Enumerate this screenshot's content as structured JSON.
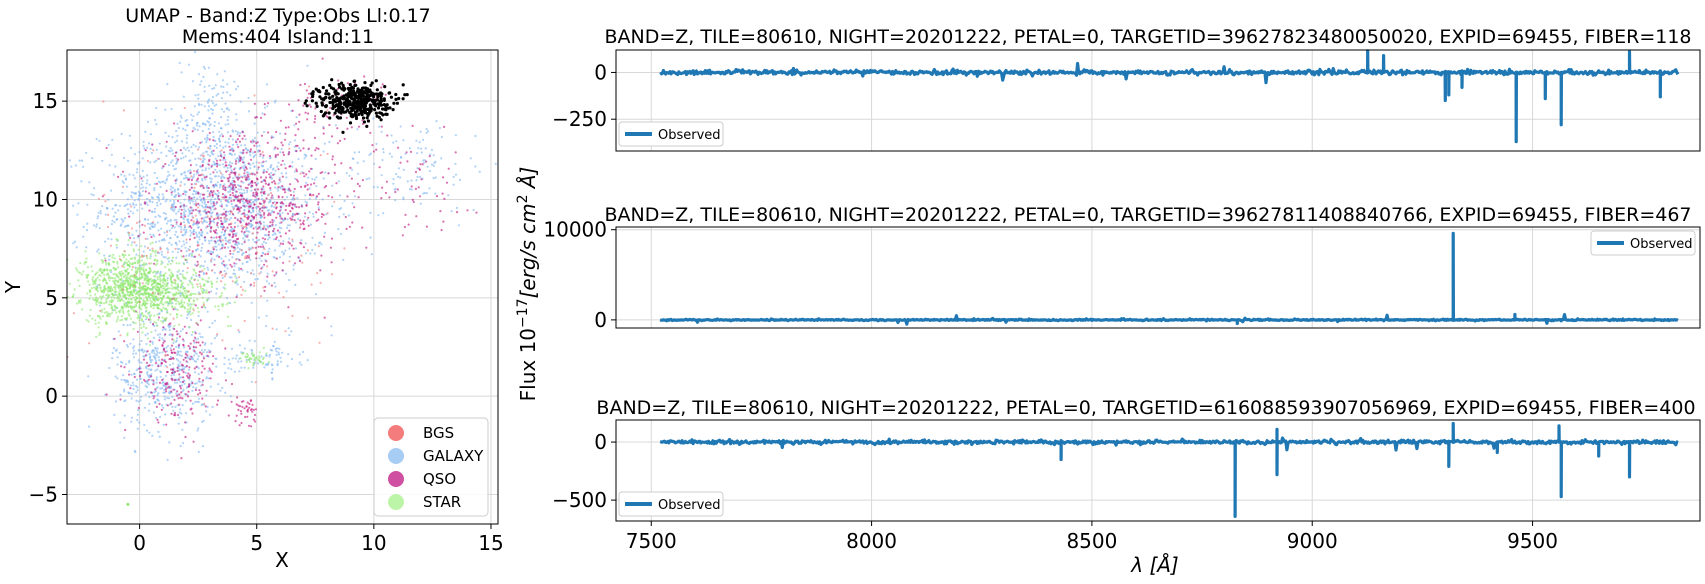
{
  "chart_data": [
    {
      "type": "scatter",
      "title": "UMAP  -  Band:Z Type:Obs Ll:0.17",
      "subtitle": "Mems:404 Island:11",
      "xlabel": "X",
      "ylabel": "Y",
      "xlim": [
        -3.1,
        15.3
      ],
      "ylim": [
        -6.5,
        17.6
      ],
      "xticks": [
        0,
        5,
        10,
        15
      ],
      "yticks": [
        -5,
        0,
        5,
        10,
        15
      ],
      "xtick_labels": [
        "0",
        "5",
        "10",
        "15"
      ],
      "ytick_labels": [
        "−5",
        "0",
        "5",
        "10",
        "15"
      ],
      "grid": true,
      "legend_position": "bottom-right",
      "series": [
        {
          "name": "GALAXY",
          "color": "#7fb6f2",
          "clusters": [
            {
              "cx": 3.2,
              "cy": 9.6,
              "sx": 2.4,
              "sy": 2.1,
              "n": 1500
            },
            {
              "cx": 1.1,
              "cy": 1.4,
              "sx": 1.1,
              "sy": 1.6,
              "n": 500
            },
            {
              "cx": 3.0,
              "cy": 14.0,
              "sx": 1.0,
              "sy": 1.6,
              "n": 160
            },
            {
              "cx": 11.8,
              "cy": 11.8,
              "sx": 1.6,
              "sy": 1.2,
              "n": 110
            },
            {
              "cx": 5.3,
              "cy": 2.0,
              "sx": 0.8,
              "sy": 0.5,
              "n": 80
            }
          ]
        },
        {
          "name": "QSO",
          "color": "#c0117e",
          "clusters": [
            {
              "cx": 4.6,
              "cy": 9.8,
              "sx": 2.0,
              "sy": 1.7,
              "n": 700
            },
            {
              "cx": 1.6,
              "cy": 1.3,
              "sx": 0.9,
              "sy": 1.3,
              "n": 220
            },
            {
              "cx": 4.5,
              "cy": -0.7,
              "sx": 0.25,
              "sy": 0.35,
              "n": 40
            },
            {
              "cx": 8.2,
              "cy": 14.5,
              "sx": 1.3,
              "sy": 1.0,
              "n": 90
            },
            {
              "cx": 11.5,
              "cy": 11.0,
              "sx": 1.4,
              "sy": 1.4,
              "n": 50
            }
          ]
        },
        {
          "name": "STAR",
          "color": "#8ee86e",
          "clusters": [
            {
              "cx": -0.3,
              "cy": 5.5,
              "sx": 1.1,
              "sy": 0.9,
              "n": 900
            },
            {
              "cx": 1.3,
              "cy": 5.2,
              "sx": 1.3,
              "sy": 0.6,
              "n": 300
            },
            {
              "cx": 4.9,
              "cy": 1.9,
              "sx": 0.3,
              "sy": 0.2,
              "n": 40
            }
          ]
        },
        {
          "name": "BGS",
          "color": "#f47c7c",
          "clusters": [
            {
              "cx": 3.0,
              "cy": 8.0,
              "sx": 2.5,
              "sy": 3.0,
              "n": 200
            }
          ]
        },
        {
          "name": "Island",
          "color": "#000000",
          "clusters": [
            {
              "cx": 9.2,
              "cy": 15.0,
              "sx": 0.75,
              "sy": 0.45,
              "n": 404
            }
          ]
        }
      ],
      "legend": [
        {
          "label": "BGS",
          "color": "#f47c7c"
        },
        {
          "label": "GALAXY",
          "color": "#a8cdf5"
        },
        {
          "label": "QSO",
          "color": "#cf4fa0"
        },
        {
          "label": "STAR",
          "color": "#bdf5a8"
        }
      ]
    },
    {
      "type": "line",
      "title": "BAND=Z, TILE=80610, NIGHT=20201222, PETAL=0, TARGETID=39627823480050020, EXPID=69455, FIBER=118",
      "ylim": [
        -420,
        120
      ],
      "yticks": [
        0,
        -250
      ],
      "ytick_labels": [
        "0",
        "−250"
      ],
      "xlim": [
        7420,
        9880
      ],
      "series": [
        {
          "name": "Observed",
          "color": "#1f77b4"
        }
      ],
      "legend_position": "bottom-left",
      "spikes": [
        {
          "x": 9126,
          "y": 115
        },
        {
          "x": 9162,
          "y": 90
        },
        {
          "x": 9302,
          "y": -150
        },
        {
          "x": 9310,
          "y": -120
        },
        {
          "x": 9340,
          "y": -80
        },
        {
          "x": 9463,
          "y": -370
        },
        {
          "x": 9529,
          "y": -140
        },
        {
          "x": 9565,
          "y": -280
        },
        {
          "x": 9720,
          "y": 110
        },
        {
          "x": 9790,
          "y": -130
        }
      ]
    },
    {
      "type": "line",
      "title": "BAND=Z, TILE=80610, NIGHT=20201222, PETAL=0, TARGETID=39627811408840766, EXPID=69455, FIBER=467",
      "ylim": [
        -900,
        10300
      ],
      "yticks": [
        0,
        10000
      ],
      "ytick_labels": [
        "0",
        "10000"
      ],
      "xlim": [
        7420,
        9880
      ],
      "series": [
        {
          "name": "Observed",
          "color": "#1f77b4"
        }
      ],
      "legend_position": "top-right",
      "spikes": [
        {
          "x": 9320,
          "y": 9600
        },
        {
          "x": 8830,
          "y": -400
        },
        {
          "x": 9460,
          "y": 600
        }
      ]
    },
    {
      "type": "line",
      "title": "BAND=Z, TILE=80610, NIGHT=20201222, PETAL=0, TARGETID=616088593907056969, EXPID=69455, FIBER=400",
      "ylim": [
        -680,
        190
      ],
      "yticks": [
        0,
        -500
      ],
      "ytick_labels": [
        "0",
        "−500"
      ],
      "xlim": [
        7420,
        9880
      ],
      "xticks": [
        7500,
        8000,
        8500,
        9000,
        9500
      ],
      "xtick_labels": [
        "7500",
        "8000",
        "8500",
        "9000",
        "9500"
      ],
      "series": [
        {
          "name": "Observed",
          "color": "#1f77b4"
        }
      ],
      "legend_position": "bottom-left",
      "spikes": [
        {
          "x": 8430,
          "y": -150
        },
        {
          "x": 8825,
          "y": -640
        },
        {
          "x": 8920,
          "y": 110
        },
        {
          "x": 8920,
          "y": -280
        },
        {
          "x": 9310,
          "y": -210
        },
        {
          "x": 9320,
          "y": 160
        },
        {
          "x": 9420,
          "y": -90
        },
        {
          "x": 9560,
          "y": 140
        },
        {
          "x": 9565,
          "y": -470
        },
        {
          "x": 9720,
          "y": -300
        },
        {
          "x": 9650,
          "y": -120
        }
      ]
    }
  ],
  "shared": {
    "right_ylabel": "Flux 10",
    "right_ylabel_exp": "−17",
    "right_ylabel_units": "[erg/s cm",
    "right_ylabel_units_exp": "2",
    "right_ylabel_tail": " Å]",
    "right_xlabel": "λ [Å]",
    "legend_label": "Observed"
  }
}
